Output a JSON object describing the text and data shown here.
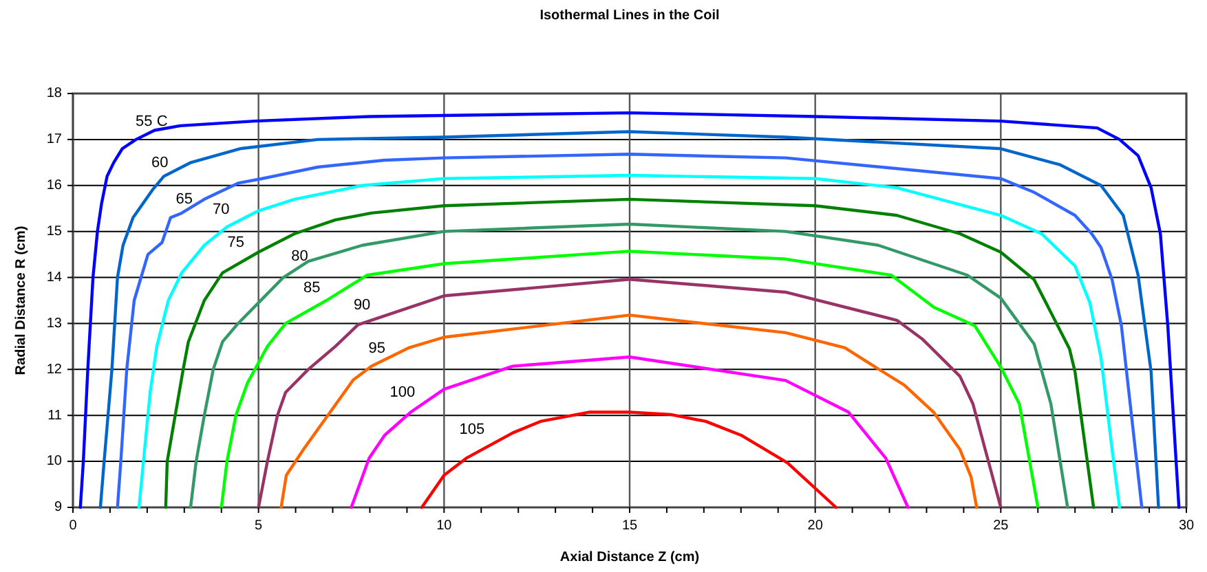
{
  "chart_data": {
    "type": "line",
    "title": "Isothermal Lines in the Coil",
    "xlabel": "Axial Distance Z (cm)",
    "ylabel": "Radial Distance R (cm)",
    "xlim": [
      0,
      30
    ],
    "ylim": [
      9,
      18
    ],
    "xticks": [
      0,
      {
        "value": 1,
        "label": null
      },
      {
        "value": 2,
        "label": null
      },
      {
        "value": 3,
        "label": null
      },
      {
        "value": 4,
        "label": null
      },
      5,
      {
        "value": 6,
        "label": null
      },
      {
        "value": 7,
        "label": null
      },
      {
        "value": 8,
        "label": null
      },
      {
        "value": 9,
        "label": null
      },
      10,
      {
        "value": 11,
        "label": null
      },
      {
        "value": 12,
        "label": null
      },
      {
        "value": 13,
        "label": null
      },
      {
        "value": 14,
        "label": null
      },
      15,
      {
        "value": 16,
        "label": null
      },
      {
        "value": 17,
        "label": null
      },
      {
        "value": 18,
        "label": null
      },
      {
        "value": 19,
        "label": null
      },
      20,
      {
        "value": 21,
        "label": null
      },
      {
        "value": 22,
        "label": null
      },
      {
        "value": 23,
        "label": null
      },
      {
        "value": 24,
        "label": null
      },
      25,
      {
        "value": 26,
        "label": null
      },
      {
        "value": 27,
        "label": null
      },
      {
        "value": 28,
        "label": null
      },
      {
        "value": 29,
        "label": null
      },
      30
    ],
    "yticks": [
      9,
      10,
      11,
      12,
      13,
      14,
      15,
      16,
      17,
      18
    ],
    "grid": true,
    "marker": "none",
    "line_style": "solid",
    "series": [
      {
        "name": "55 C",
        "color": "#0000ff",
        "x": [
          0.2,
          0.28,
          0.4,
          0.54,
          0.66,
          0.77,
          0.92,
          1.1,
          1.33,
          1.7,
          2.2,
          2.9,
          4.9,
          8,
          15,
          20,
          25,
          27.6,
          28.2,
          28.7,
          29.05,
          29.3,
          29.5,
          29.8
        ],
        "values": [
          9,
          10,
          12,
          14,
          15,
          15.6,
          16.2,
          16.5,
          16.8,
          17.0,
          17.2,
          17.3,
          17.4,
          17.5,
          17.58,
          17.5,
          17.4,
          17.25,
          17.0,
          16.65,
          15.95,
          14.95,
          12.95,
          9
        ]
      },
      {
        "name": "60",
        "color": "#0066cc",
        "x": [
          0.74,
          0.84,
          1.05,
          1.2,
          1.35,
          1.62,
          2.14,
          2.45,
          3.18,
          4.5,
          6.6,
          10,
          15,
          19.2,
          25,
          26.6,
          27.7,
          28.3,
          28.7,
          29.05,
          29.25
        ],
        "values": [
          9,
          10,
          12,
          14,
          14.7,
          15.3,
          15.9,
          16.2,
          16.5,
          16.8,
          17.0,
          17.05,
          17.17,
          17.05,
          16.8,
          16.45,
          16.0,
          15.35,
          14.05,
          11.95,
          9
        ]
      },
      {
        "name": "65",
        "color": "#3366ff",
        "x": [
          1.2,
          1.29,
          1.45,
          1.65,
          2.02,
          2.4,
          2.63,
          2.93,
          3.54,
          4.45,
          5.1,
          6.6,
          8.4,
          10,
          15,
          19.2,
          25,
          25.9,
          27,
          27.45,
          27.7,
          28,
          28.25,
          28.8
        ],
        "values": [
          9,
          10,
          12,
          13.5,
          14.5,
          14.76,
          15.3,
          15.4,
          15.7,
          16.05,
          16.15,
          16.4,
          16.55,
          16.6,
          16.68,
          16.6,
          16.15,
          15.85,
          15.35,
          14.95,
          14.65,
          13.95,
          12.95,
          9
        ]
      },
      {
        "name": "70",
        "color": "#00ffff",
        "x": [
          1.78,
          1.9,
          2.08,
          2.26,
          2.57,
          2.93,
          3.54,
          4.15,
          5,
          5.97,
          7.8,
          10,
          15,
          20,
          22.2,
          25,
          26.1,
          27,
          27.4,
          27.7,
          28,
          28.2
        ],
        "values": [
          9,
          10,
          11.5,
          12.5,
          13.5,
          14.1,
          14.7,
          15.1,
          15.45,
          15.7,
          16.0,
          16.15,
          16.22,
          16.15,
          15.95,
          15.35,
          14.95,
          14.25,
          13.45,
          12.25,
          10.25,
          9
        ]
      },
      {
        "name": "75",
        "color": "#008000",
        "x": [
          2.5,
          2.54,
          2.97,
          3.11,
          3.54,
          4.03,
          5,
          5.97,
          7.07,
          8.04,
          10,
          15,
          20,
          22.2,
          23.9,
          25,
          25.9,
          26.85,
          27,
          27.5
        ],
        "values": [
          9,
          10,
          12,
          12.6,
          13.5,
          14.1,
          14.55,
          14.95,
          15.25,
          15.4,
          15.56,
          15.7,
          15.56,
          15.35,
          14.95,
          14.55,
          13.95,
          12.45,
          11.95,
          9
        ]
      },
      {
        "name": "80",
        "color": "#339966",
        "x": [
          3.17,
          3.32,
          3.54,
          3.78,
          4.03,
          4.45,
          5,
          5.67,
          6.34,
          7.8,
          10,
          15,
          19.2,
          21.7,
          24.1,
          25,
          25.9,
          26.35,
          26.8
        ],
        "values": [
          9,
          10,
          11,
          12,
          12.6,
          13,
          13.45,
          14,
          14.35,
          14.7,
          15,
          15.16,
          15,
          14.7,
          14.05,
          13.55,
          12.55,
          11.25,
          9
        ]
      },
      {
        "name": "85",
        "color": "#00ff00",
        "x": [
          4,
          4.15,
          4.39,
          4.7,
          5.24,
          5.73,
          6.83,
          7.93,
          10,
          15,
          19.2,
          22.05,
          23.2,
          24.3,
          25,
          25.5,
          26
        ],
        "values": [
          9,
          10,
          11,
          11.7,
          12.5,
          13,
          13.5,
          14.05,
          14.3,
          14.57,
          14.4,
          14.05,
          13.35,
          12.95,
          12.05,
          11.25,
          9
        ]
      },
      {
        "name": "90",
        "color": "#993366",
        "x": [
          5,
          5.24,
          5.51,
          5.73,
          6.34,
          7.07,
          7.68,
          10,
          15,
          19.2,
          22.2,
          22.9,
          23.9,
          24.25,
          25
        ],
        "values": [
          9,
          10,
          11,
          11.5,
          12,
          12.5,
          12.97,
          13.6,
          13.96,
          13.68,
          13.07,
          12.65,
          11.85,
          11.25,
          9
        ]
      },
      {
        "name": "95",
        "color": "#ff6600",
        "x": [
          5.61,
          5.75,
          6.22,
          7.55,
          8.04,
          9.05,
          10,
          15,
          19.2,
          20.8,
          21.8,
          22.4,
          23.2,
          23.9,
          24.2,
          24.35
        ],
        "values": [
          9,
          9.7,
          10.27,
          11.77,
          12.07,
          12.47,
          12.7,
          13.18,
          12.8,
          12.47,
          11.96,
          11.66,
          11.06,
          10.26,
          9.66,
          9
        ]
      },
      {
        "name": "100",
        "color": "#ff00ff",
        "x": [
          7.5,
          7.98,
          8.4,
          9.1,
          10,
          11.85,
          15,
          19.2,
          20.9,
          21.9,
          22.5
        ],
        "values": [
          9,
          10.07,
          10.57,
          11.07,
          11.57,
          12.07,
          12.27,
          11.76,
          11.07,
          10.07,
          9
        ]
      },
      {
        "name": "105",
        "color": "#ff0000",
        "x": [
          9.4,
          10,
          10.6,
          11.85,
          12.6,
          13.9,
          15,
          16.1,
          17.05,
          18,
          19.25,
          20.56
        ],
        "values": [
          9,
          9.7,
          10.07,
          10.62,
          10.87,
          11.07,
          11.07,
          11.02,
          10.87,
          10.57,
          9.97,
          9
        ]
      }
    ]
  }
}
